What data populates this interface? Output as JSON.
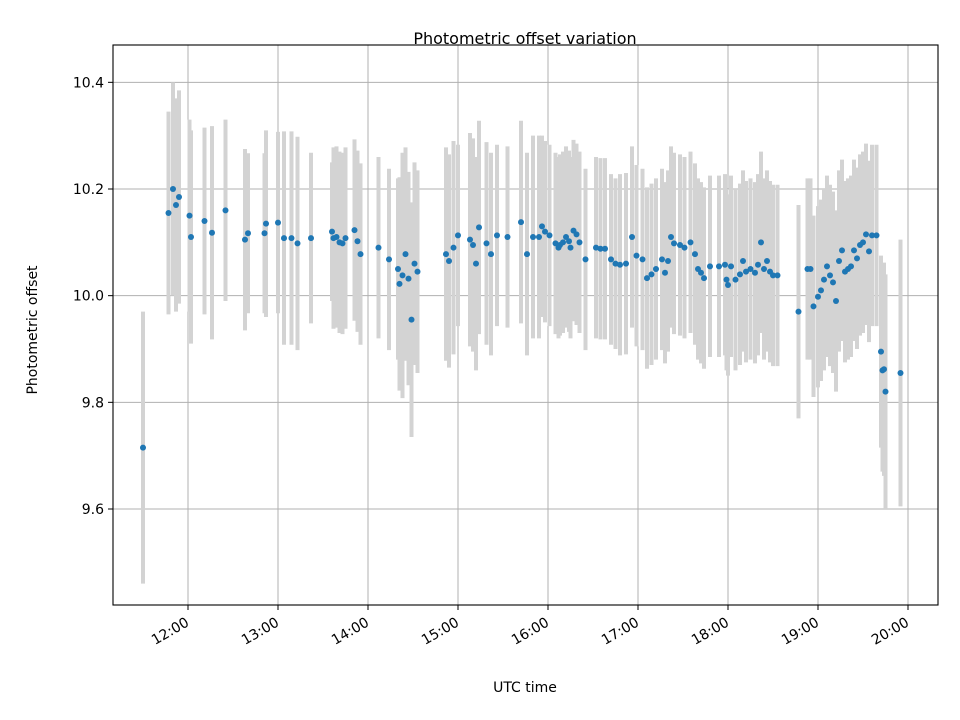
{
  "chart_data": {
    "type": "scatter",
    "title": "Photometric offset variation",
    "xlabel": "UTC time",
    "ylabel": "Photometric offset",
    "x_axis": {
      "kind": "time",
      "range": [
        "11:10",
        "20:20"
      ],
      "ticks": [
        "12:00",
        "13:00",
        "14:00",
        "15:00",
        "16:00",
        "17:00",
        "18:00",
        "19:00",
        "20:00"
      ]
    },
    "y_axis": {
      "range": [
        9.42,
        10.47
      ],
      "ticks": [
        "9.6",
        "9.8",
        "10.0",
        "10.2",
        "10.4"
      ]
    },
    "grid": true,
    "legend": "none",
    "colors": {
      "point": "#1f77b4",
      "errorbar": "#d3d3d3",
      "grid": "#b0b0b0"
    },
    "series": [
      {
        "points": [
          [
            "11:30",
            9.715,
            0.255
          ],
          [
            "11:47",
            10.155,
            0.19
          ],
          [
            "11:50",
            10.2,
            0.2
          ],
          [
            "11:52",
            10.17,
            0.2
          ],
          [
            "11:54",
            10.185,
            0.2
          ],
          [
            "12:01",
            10.15,
            0.18
          ],
          [
            "12:02",
            10.11,
            0.2
          ],
          [
            "12:11",
            10.14,
            0.175
          ],
          [
            "12:16",
            10.118,
            0.2
          ],
          [
            "12:25",
            10.16,
            0.17
          ],
          [
            "12:38",
            10.105,
            0.17
          ],
          [
            "12:40",
            10.117,
            0.15
          ],
          [
            "12:51",
            10.117,
            0.15
          ],
          [
            "12:52",
            10.135,
            0.175
          ],
          [
            "13:00",
            10.137,
            0.17
          ],
          [
            "13:04",
            10.108,
            0.2
          ],
          [
            "13:09",
            10.108,
            0.2
          ],
          [
            "13:13",
            10.098,
            0.2
          ],
          [
            "13:22",
            10.108,
            0.16
          ],
          [
            "13:36",
            10.12,
            0.13
          ],
          [
            "13:37",
            10.108,
            0.17
          ],
          [
            "13:39",
            10.11,
            0.17
          ],
          [
            "13:41",
            10.1,
            0.17
          ],
          [
            "13:43",
            10.098,
            0.17
          ],
          [
            "13:45",
            10.108,
            0.17
          ],
          [
            "13:51",
            10.123,
            0.17
          ],
          [
            "13:53",
            10.102,
            0.17
          ],
          [
            "13:55",
            10.078,
            0.17
          ],
          [
            "14:07",
            10.09,
            0.17
          ],
          [
            "14:14",
            10.068,
            0.17
          ],
          [
            "14:20",
            10.05,
            0.17
          ],
          [
            "14:21",
            10.022,
            0.2
          ],
          [
            "14:23",
            10.038,
            0.23
          ],
          [
            "14:25",
            10.078,
            0.2
          ],
          [
            "14:27",
            10.032,
            0.2
          ],
          [
            "14:29",
            9.955,
            0.22
          ],
          [
            "14:31",
            10.06,
            0.19
          ],
          [
            "14:33",
            10.045,
            0.19
          ],
          [
            "14:52",
            10.078,
            0.2
          ],
          [
            "14:54",
            10.065,
            0.2
          ],
          [
            "14:57",
            10.09,
            0.2
          ],
          [
            "15:00",
            10.113,
            0.17
          ],
          [
            "15:08",
            10.105,
            0.2
          ],
          [
            "15:10",
            10.095,
            0.2
          ],
          [
            "15:12",
            10.06,
            0.2
          ],
          [
            "15:14",
            10.128,
            0.2
          ],
          [
            "15:19",
            10.098,
            0.19
          ],
          [
            "15:22",
            10.078,
            0.19
          ],
          [
            "15:26",
            10.113,
            0.17
          ],
          [
            "15:33",
            10.11,
            0.17
          ],
          [
            "15:42",
            10.138,
            0.19
          ],
          [
            "15:46",
            10.078,
            0.19
          ],
          [
            "15:50",
            10.11,
            0.19
          ],
          [
            "15:54",
            10.11,
            0.19
          ],
          [
            "15:56",
            10.13,
            0.17
          ],
          [
            "15:58",
            10.12,
            0.17
          ],
          [
            "16:01",
            10.113,
            0.17
          ],
          [
            "16:05",
            10.098,
            0.17
          ],
          [
            "16:07",
            10.09,
            0.17
          ],
          [
            "16:08",
            10.095,
            0.17
          ],
          [
            "16:10",
            10.1,
            0.17
          ],
          [
            "16:12",
            10.11,
            0.17
          ],
          [
            "16:14",
            10.102,
            0.17
          ],
          [
            "16:15",
            10.09,
            0.17
          ],
          [
            "16:17",
            10.122,
            0.17
          ],
          [
            "16:19",
            10.115,
            0.17
          ],
          [
            "16:21",
            10.1,
            0.17
          ],
          [
            "16:25",
            10.068,
            0.17
          ],
          [
            "16:32",
            10.09,
            0.17
          ],
          [
            "16:35",
            10.088,
            0.17
          ],
          [
            "16:38",
            10.088,
            0.17
          ],
          [
            "16:42",
            10.068,
            0.16
          ],
          [
            "16:45",
            10.06,
            0.16
          ],
          [
            "16:48",
            10.058,
            0.17
          ],
          [
            "16:52",
            10.06,
            0.17
          ],
          [
            "16:56",
            10.11,
            0.17
          ],
          [
            "16:59",
            10.075,
            0.17
          ],
          [
            "17:03",
            10.068,
            0.17
          ],
          [
            "17:06",
            10.033,
            0.17
          ],
          [
            "17:09",
            10.04,
            0.17
          ],
          [
            "17:12",
            10.05,
            0.17
          ],
          [
            "17:16",
            10.068,
            0.17
          ],
          [
            "17:18",
            10.043,
            0.17
          ],
          [
            "17:20",
            10.065,
            0.17
          ],
          [
            "17:22",
            10.11,
            0.17
          ],
          [
            "17:24",
            10.098,
            0.17
          ],
          [
            "17:28",
            10.095,
            0.17
          ],
          [
            "17:31",
            10.09,
            0.17
          ],
          [
            "17:35",
            10.1,
            0.17
          ],
          [
            "17:38",
            10.078,
            0.17
          ],
          [
            "17:40",
            10.05,
            0.17
          ],
          [
            "17:42",
            10.043,
            0.17
          ],
          [
            "17:44",
            10.033,
            0.17
          ],
          [
            "17:48",
            10.055,
            0.17
          ],
          [
            "17:54",
            10.055,
            0.17
          ],
          [
            "17:58",
            10.058,
            0.17
          ],
          [
            "17:59",
            10.03,
            0.17
          ],
          [
            "18:00",
            10.02,
            0.17
          ],
          [
            "18:02",
            10.055,
            0.17
          ],
          [
            "18:05",
            10.03,
            0.17
          ],
          [
            "18:08",
            10.04,
            0.17
          ],
          [
            "18:10",
            10.065,
            0.17
          ],
          [
            "18:12",
            10.045,
            0.17
          ],
          [
            "18:15",
            10.05,
            0.17
          ],
          [
            "18:18",
            10.043,
            0.17
          ],
          [
            "18:20",
            10.058,
            0.17
          ],
          [
            "18:22",
            10.1,
            0.17
          ],
          [
            "18:24",
            10.05,
            0.17
          ],
          [
            "18:26",
            10.065,
            0.17
          ],
          [
            "18:28",
            10.045,
            0.17
          ],
          [
            "18:30",
            10.038,
            0.17
          ],
          [
            "18:33",
            10.038,
            0.17
          ],
          [
            "18:47",
            9.97,
            0.2
          ],
          [
            "18:53",
            10.05,
            0.17
          ],
          [
            "18:55",
            10.05,
            0.17
          ],
          [
            "18:57",
            9.98,
            0.17
          ],
          [
            "19:00",
            9.998,
            0.17
          ],
          [
            "19:02",
            10.01,
            0.17
          ],
          [
            "19:04",
            10.03,
            0.17
          ],
          [
            "19:06",
            10.055,
            0.17
          ],
          [
            "19:08",
            10.038,
            0.17
          ],
          [
            "19:10",
            10.025,
            0.17
          ],
          [
            "19:12",
            9.99,
            0.17
          ],
          [
            "19:14",
            10.065,
            0.17
          ],
          [
            "19:16",
            10.085,
            0.17
          ],
          [
            "19:18",
            10.045,
            0.17
          ],
          [
            "19:20",
            10.05,
            0.17
          ],
          [
            "19:22",
            10.055,
            0.17
          ],
          [
            "19:24",
            10.085,
            0.17
          ],
          [
            "19:26",
            10.07,
            0.17
          ],
          [
            "19:28",
            10.095,
            0.17
          ],
          [
            "19:30",
            10.1,
            0.17
          ],
          [
            "19:32",
            10.115,
            0.17
          ],
          [
            "19:34",
            10.083,
            0.17
          ],
          [
            "19:36",
            10.113,
            0.17
          ],
          [
            "19:39",
            10.113,
            0.17
          ],
          [
            "19:42",
            9.895,
            0.18
          ],
          [
            "19:43",
            9.86,
            0.19
          ],
          [
            "19:44",
            9.862,
            0.2
          ],
          [
            "19:45",
            9.82,
            0.22
          ],
          [
            "19:55",
            9.855,
            0.25
          ]
        ]
      }
    ]
  }
}
